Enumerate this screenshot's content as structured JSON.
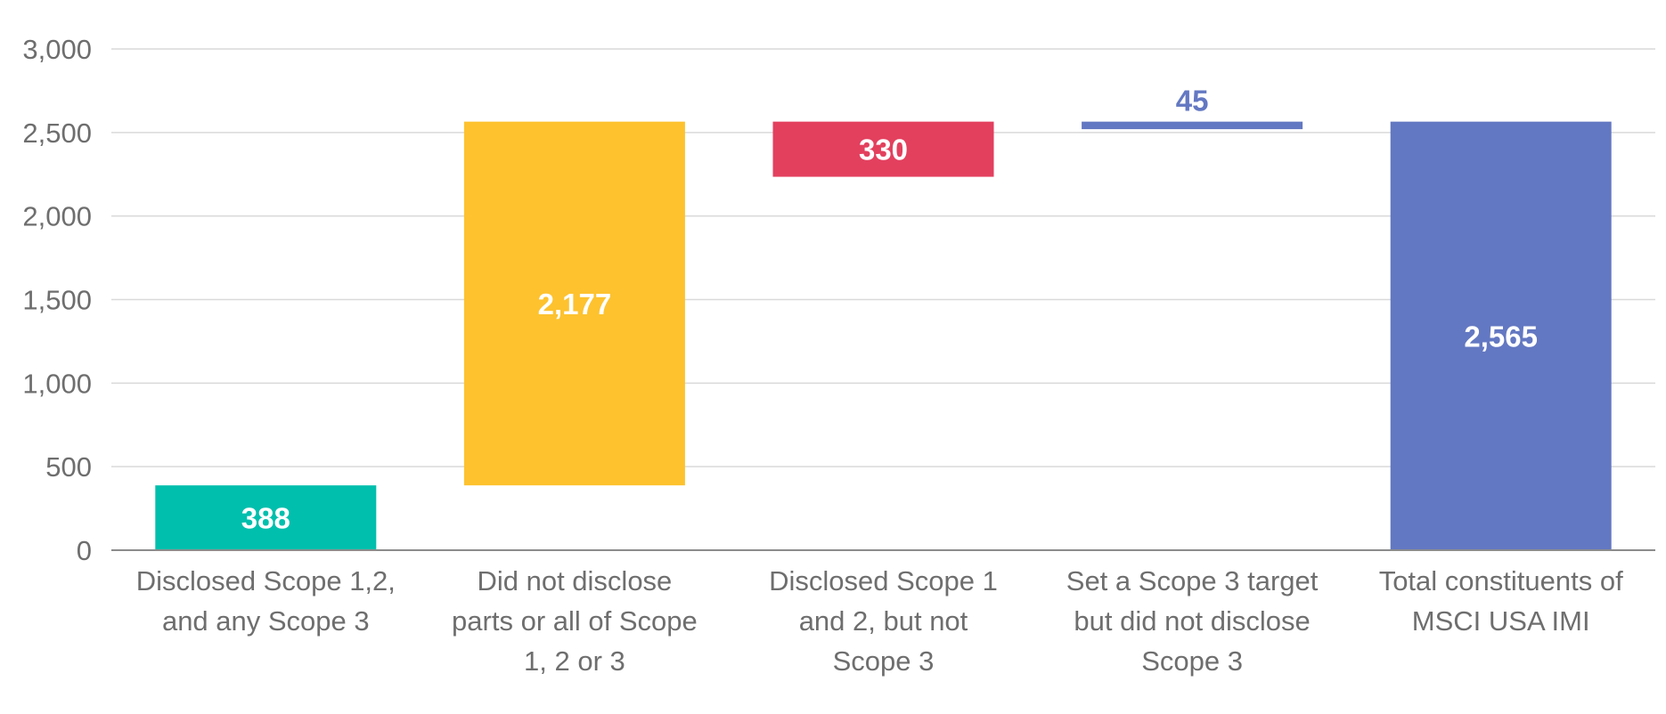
{
  "chart_data": {
    "type": "bar",
    "subtype": "waterfall",
    "title": "",
    "xlabel": "",
    "ylabel": "",
    "ylim": [
      0,
      3000
    ],
    "yticks": [
      0,
      500,
      1000,
      1500,
      2000,
      2500,
      3000
    ],
    "ytick_labels": [
      "0",
      "500",
      "1,000",
      "1,500",
      "2,000",
      "2,500",
      "3,000"
    ],
    "grid": true,
    "legend": "none",
    "bars": [
      {
        "category": [
          "Disclosed Scope 1,2,",
          "and any Scope 3"
        ],
        "start": 0,
        "end": 388,
        "value": 388,
        "label": "388",
        "color": "#00bfad",
        "label_color": "#ffffff",
        "label_position": "inside"
      },
      {
        "category": [
          "Did not disclose",
          "parts or all of Scope",
          "1, 2 or 3"
        ],
        "start": 388,
        "end": 2565,
        "value": 2177,
        "label": "2,177",
        "color": "#fdc22e",
        "label_color": "#ffffff",
        "label_position": "inside"
      },
      {
        "category": [
          "Disclosed Scope 1",
          "and 2, but not",
          "Scope 3"
        ],
        "start": 2235,
        "end": 2565,
        "value": 330,
        "label": "330",
        "color": "#e3405e",
        "label_color": "#ffffff",
        "label_position": "inside"
      },
      {
        "category": [
          "Set a Scope 3 target",
          "but did not disclose",
          "Scope 3"
        ],
        "start": 2520,
        "end": 2565,
        "value": 45,
        "label": "45",
        "color": "#6378c2",
        "label_color": "#6378c2",
        "label_position": "above"
      },
      {
        "category": [
          "Total constituents of",
          "MSCI USA IMI"
        ],
        "start": 0,
        "end": 2565,
        "value": 2565,
        "label": "2,565",
        "color": "#6378c2",
        "label_color": "#ffffff",
        "label_position": "inside"
      }
    ],
    "colors": {
      "gridline": "#d9d9d9",
      "axis": "#8c8c8c",
      "tick_text": "#6e6e6e"
    }
  }
}
